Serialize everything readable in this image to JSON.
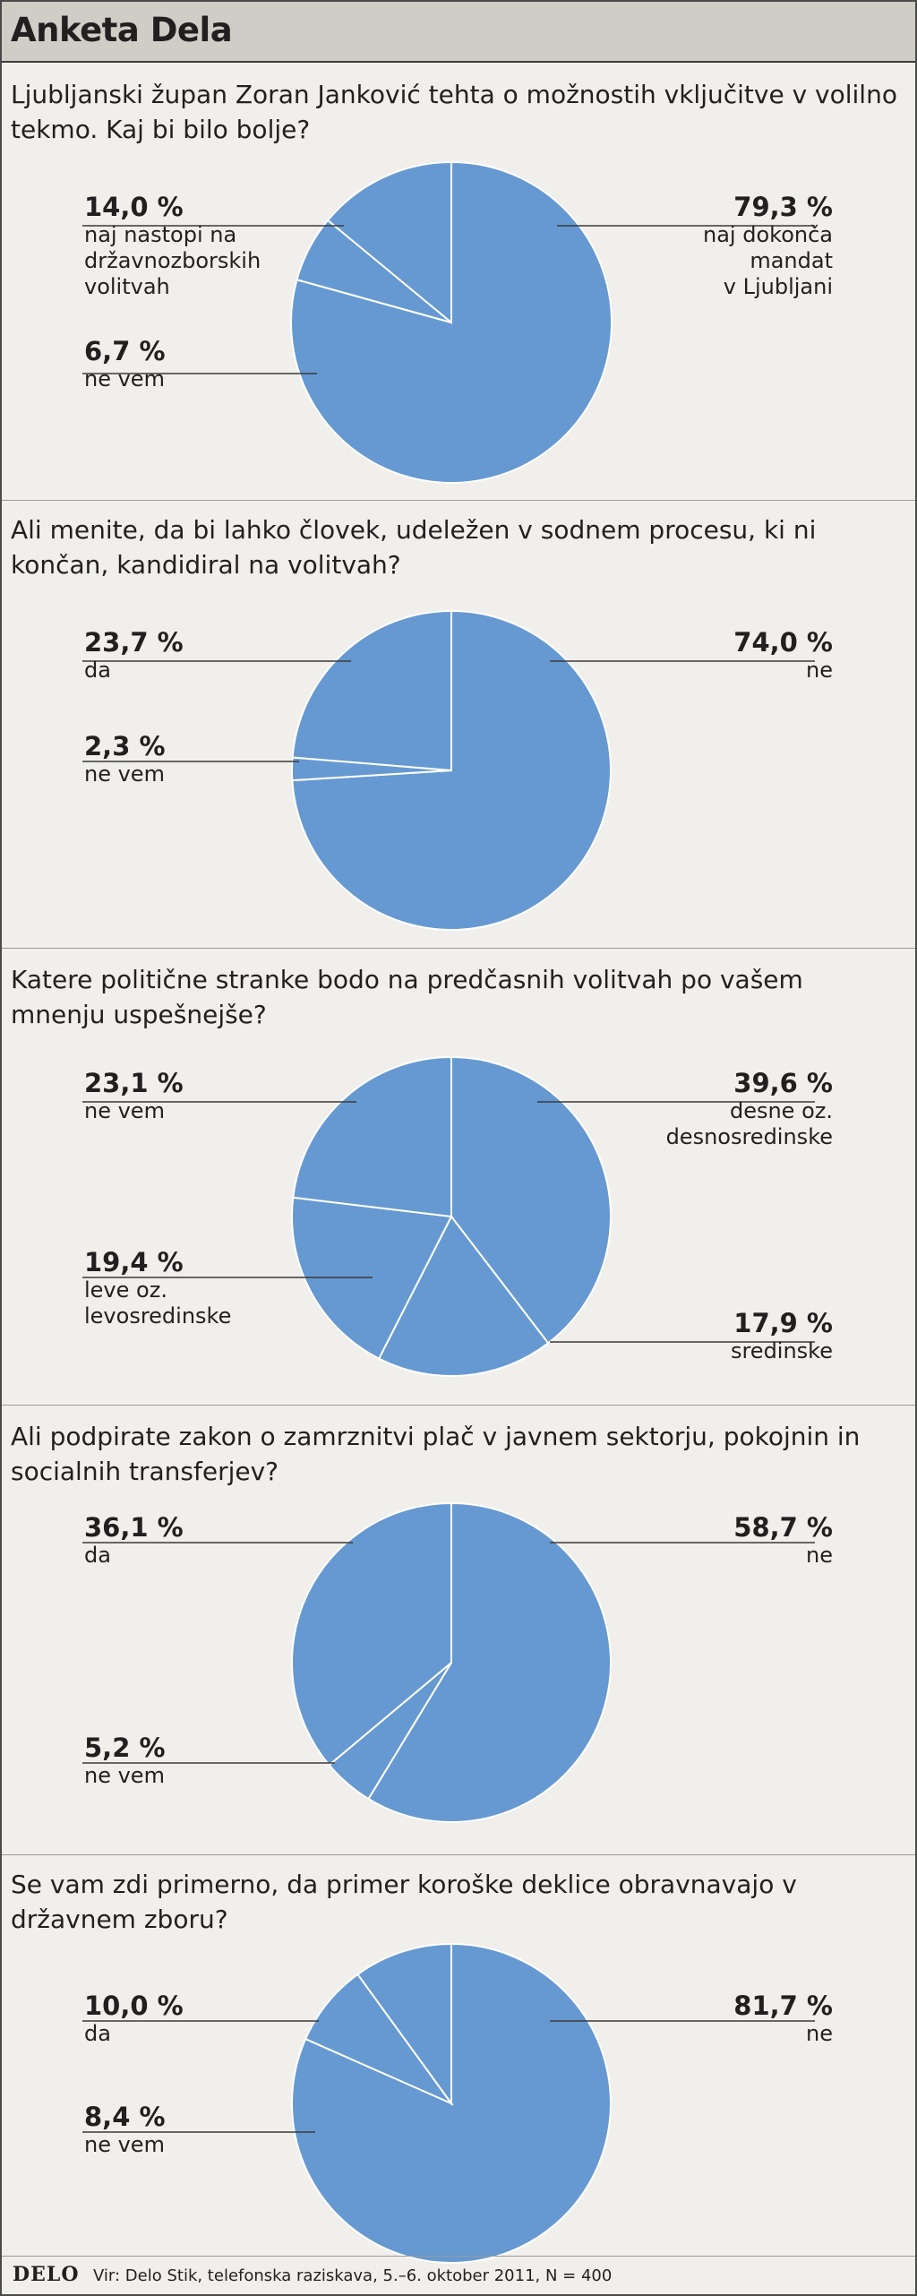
{
  "title": "Anketa Dela",
  "source": "Vir: Delo Stik, telefonska raziskava, 5.–6. oktober 2011, N = 400",
  "logo": "DELO",
  "colors": {
    "slice": "#6699d1",
    "line": "#3a3a3a",
    "slice_border": "#ffffff"
  },
  "chart_data": [
    {
      "type": "pie",
      "title": "Ljubljanski župan Zoran Janković tehta o možnostih vključitve v volilno tekmo. Kaj bi bilo bolje?",
      "slices": [
        {
          "value": 79.3,
          "pct_label": "79,3 %",
          "label": "naj dokonča\nmandat\nv Ljubljani"
        },
        {
          "value": 6.7,
          "pct_label": "6,7 %",
          "label": "ne vem"
        },
        {
          "value": 14.0,
          "pct_label": "14,0 %",
          "label": "naj nastopi na\ndržavnozborskih\nvolitvah"
        }
      ]
    },
    {
      "type": "pie",
      "title": "Ali menite, da bi lahko človek, udeležen v sodnem procesu, ki ni končan, kandidiral na volitvah?",
      "slices": [
        {
          "value": 74.0,
          "pct_label": "74,0 %",
          "label": "ne"
        },
        {
          "value": 2.3,
          "pct_label": "2,3 %",
          "label": "ne vem"
        },
        {
          "value": 23.7,
          "pct_label": "23,7 %",
          "label": "da"
        }
      ]
    },
    {
      "type": "pie",
      "title": "Katere politične stranke bodo na predčasnih volitvah po vašem mnenju uspešnejše?",
      "slices": [
        {
          "value": 39.6,
          "pct_label": "39,6 %",
          "label": "desne oz.\ndesnosredinske"
        },
        {
          "value": 17.9,
          "pct_label": "17,9 %",
          "label": "sredinske"
        },
        {
          "value": 19.4,
          "pct_label": "19,4 %",
          "label": "leve oz.\nlevosredinske"
        },
        {
          "value": 23.1,
          "pct_label": "23,1 %",
          "label": "ne vem"
        }
      ]
    },
    {
      "type": "pie",
      "title": "Ali podpirate zakon o zamrznitvi plač v javnem sektorju, pokojnin in socialnih transferjev?",
      "slices": [
        {
          "value": 58.7,
          "pct_label": "58,7 %",
          "label": "ne"
        },
        {
          "value": 5.2,
          "pct_label": "5,2 %",
          "label": "ne vem"
        },
        {
          "value": 36.1,
          "pct_label": "36,1 %",
          "label": "da"
        }
      ]
    },
    {
      "type": "pie",
      "title": "Se vam zdi primerno, da primer koroške deklice obravnavajo v državnem zboru?",
      "slices": [
        {
          "value": 81.7,
          "pct_label": "81,7 %",
          "label": "ne"
        },
        {
          "value": 8.4,
          "pct_label": "8,4 %",
          "label": "ne vem"
        },
        {
          "value": 10.0,
          "pct_label": "10,0 %",
          "label": "da"
        }
      ]
    }
  ]
}
